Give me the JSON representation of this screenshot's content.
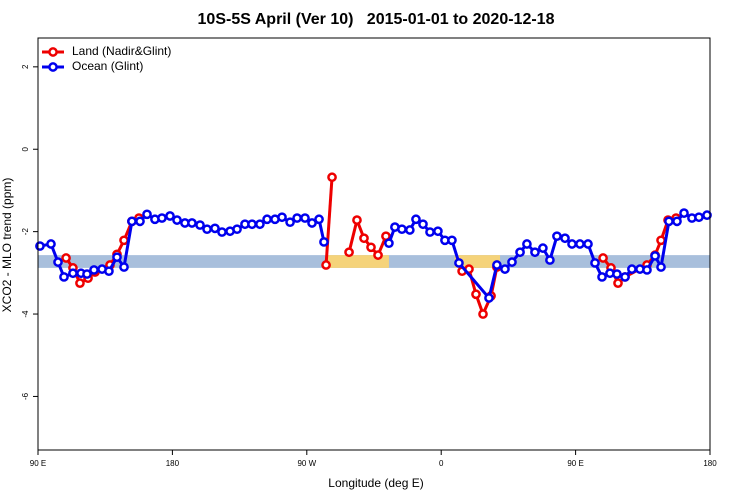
{
  "chart_data": {
    "type": "line",
    "title": "10S-5S April (Ver 10)   2015-01-01 to 2020-12-18",
    "x_label": "Longitude (deg E)",
    "y_label": "XCO2 - MLO trend (ppm)",
    "xlim": [
      90,
      540
    ],
    "ylim": [
      -7.3,
      2.7
    ],
    "xticks": [
      {
        "value": 90,
        "label": "90 E"
      },
      180,
      {
        "value": 270,
        "label": "90 W"
      },
      {
        "value": 360,
        "label": "0"
      },
      {
        "value": 450,
        "label": "90 E"
      },
      {
        "value": 540,
        "label": "180"
      }
    ],
    "yticks": [
      -6,
      -4,
      -2,
      0,
      2
    ],
    "legend_position": "top-left",
    "band": {
      "y": [
        -2.88,
        -2.57
      ],
      "color": "#a8bfdc",
      "segments": [
        {
          "x": [
            283.5,
            325
          ],
          "color": "#f5d37a"
        },
        {
          "x": [
            369,
            399.4
          ],
          "color": "#f5d37a"
        }
      ]
    },
    "series": [
      {
        "name": "Land (Nadir&Glint)",
        "color": "#ee0000",
        "x": [
          108.8,
          113.4,
          118.1,
          123.5,
          128.2,
          138.2,
          142.9,
          147.6,
          152.9,
          157.6,
          null,
          282.9,
          286.9,
          null,
          298.3,
          303.6,
          308.3,
          313,
          317.7,
          323,
          null,
          374,
          378.6,
          383.3,
          388,
          393.4,
          397.3,
          null,
          468.4,
          473.7,
          478.4,
          483.1,
          497.8,
          503.2,
          507.2,
          511.9,
          517.3
        ],
        "values": [
          -2.64,
          -2.88,
          -3.25,
          -3.13,
          -2.98,
          -2.81,
          -2.55,
          -2.21,
          -1.75,
          -1.67,
          null,
          -2.81,
          -0.68,
          null,
          -2.5,
          -1.72,
          -2.16,
          -2.38,
          -2.57,
          -2.11,
          null,
          -2.96,
          -2.91,
          -3.52,
          -4.0,
          -3.56,
          -2.86,
          null,
          -2.64,
          -2.88,
          -3.25,
          -3.1,
          -2.81,
          -2.57,
          -2.21,
          -1.72,
          -1.67
        ]
      },
      {
        "name": "Ocean (Glint)",
        "color": "#0000ee",
        "x": [
          91.3,
          98.7,
          103.4,
          107.4,
          113.4,
          118.8,
          122.8,
          127.5,
          132.9,
          137.5,
          142.9,
          147.6,
          152.9,
          158.3,
          163,
          168.3,
          173,
          178.4,
          183.1,
          188.4,
          193.1,
          198.5,
          203.2,
          208.5,
          213.2,
          218.6,
          223.3,
          228.6,
          233.3,
          238.6,
          243.4,
          248.7,
          253.4,
          258.8,
          263.5,
          268.8,
          273.5,
          278.2,
          281.5,
          null,
          325,
          329,
          333.7,
          339,
          343.1,
          347.8,
          352.5,
          357.8,
          362.5,
          367.2,
          371.9,
          392,
          397.3,
          402.7,
          407.4,
          412.8,
          417.4,
          422.8,
          428.1,
          432.8,
          437.5,
          442.9,
          447.6,
          452.9,
          458.3,
          463,
          467.7,
          473,
          477.7,
          483.1,
          487.7,
          493.1,
          497.8,
          503.2,
          507.2,
          512.5,
          517.9,
          522.6,
          527.9,
          532.6,
          538
        ],
        "values": [
          -2.35,
          -2.3,
          -2.74,
          -3.1,
          -3.01,
          -3.01,
          -3.03,
          -2.93,
          -2.91,
          -2.96,
          -2.62,
          -2.86,
          -1.75,
          -1.75,
          -1.58,
          -1.7,
          -1.67,
          -1.62,
          -1.72,
          -1.79,
          -1.79,
          -1.84,
          -1.94,
          -1.92,
          -2.01,
          -1.99,
          -1.94,
          -1.82,
          -1.82,
          -1.82,
          -1.7,
          -1.7,
          -1.65,
          -1.77,
          -1.67,
          -1.67,
          -1.79,
          -1.7,
          -2.25,
          null,
          -2.28,
          -1.89,
          -1.94,
          -1.96,
          -1.7,
          -1.82,
          -2.01,
          -1.99,
          -2.21,
          -2.21,
          -2.76,
          -3.61,
          -2.81,
          -2.91,
          -2.74,
          -2.5,
          -2.3,
          -2.5,
          -2.4,
          -2.69,
          -2.11,
          -2.16,
          -2.3,
          -2.3,
          -2.3,
          -2.76,
          -3.1,
          -3.01,
          -3.03,
          -3.1,
          -2.91,
          -2.91,
          -2.93,
          -2.59,
          -2.86,
          -1.75,
          -1.75,
          -1.55,
          -1.67,
          -1.65,
          -1.6
        ]
      }
    ]
  }
}
